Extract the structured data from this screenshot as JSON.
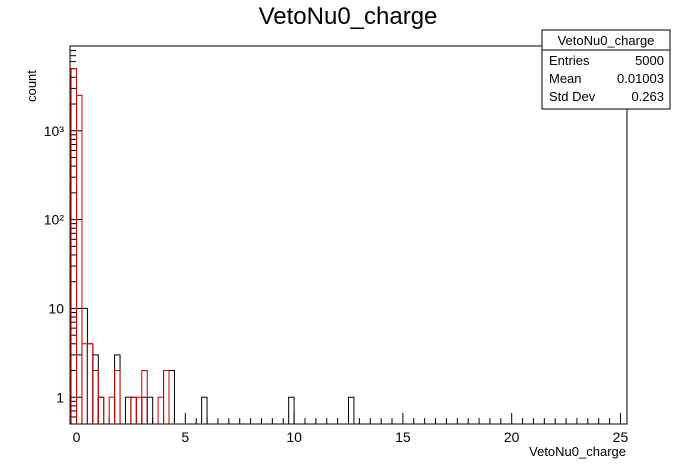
{
  "chart_data": {
    "type": "histogram",
    "title": "VetoNu0_charge",
    "xlabel": "VetoNu0_charge",
    "ylabel": "count",
    "xlim": [
      -0.3,
      25.3
    ],
    "ylim_log": [
      0.5,
      9000
    ],
    "yscale": "log",
    "grid": false,
    "x_ticks": [
      0,
      5,
      10,
      15,
      20,
      25
    ],
    "y_ticks": [
      {
        "value": 1,
        "label": "1"
      },
      {
        "value": 10,
        "label": "10"
      },
      {
        "value": 100,
        "label": "10²"
      },
      {
        "value": 1000,
        "label": "10³"
      }
    ],
    "bin_width": 0.25,
    "series": [
      {
        "color": "#000000",
        "bins": [
          {
            "x": 0.0,
            "y": 3
          },
          {
            "x": 0.25,
            "y": 10
          },
          {
            "x": 0.5,
            "y": 4
          },
          {
            "x": 0.75,
            "y": 3
          },
          {
            "x": 1.0,
            "y": 1
          },
          {
            "x": 1.75,
            "y": 3
          },
          {
            "x": 2.25,
            "y": 1
          },
          {
            "x": 2.5,
            "y": 1
          },
          {
            "x": 3.0,
            "y": 1
          },
          {
            "x": 3.25,
            "y": 1
          },
          {
            "x": 4.0,
            "y": 2
          },
          {
            "x": 4.25,
            "y": 2
          },
          {
            "x": 5.75,
            "y": 1
          },
          {
            "x": 9.75,
            "y": 1
          },
          {
            "x": 12.5,
            "y": 1
          }
        ]
      },
      {
        "color": "#cc0000",
        "bins": [
          {
            "x": -0.25,
            "y": 5000
          },
          {
            "x": 0.0,
            "y": 2500
          },
          {
            "x": 0.25,
            "y": 4
          },
          {
            "x": 0.5,
            "y": 4
          },
          {
            "x": 0.75,
            "y": 2
          },
          {
            "x": 1.0,
            "y": 1
          },
          {
            "x": 1.5,
            "y": 1
          },
          {
            "x": 1.75,
            "y": 2
          },
          {
            "x": 2.5,
            "y": 1
          },
          {
            "x": 2.75,
            "y": 1
          },
          {
            "x": 3.0,
            "y": 2
          },
          {
            "x": 3.75,
            "y": 1
          },
          {
            "x": 4.0,
            "y": 2
          }
        ]
      }
    ],
    "stats_box": {
      "name": "VetoNu0_charge",
      "rows": [
        {
          "label": "Entries",
          "value": "5000"
        },
        {
          "label": "Mean",
          "value": "0.01003"
        },
        {
          "label": "Std Dev",
          "value": "0.263"
        }
      ]
    }
  }
}
